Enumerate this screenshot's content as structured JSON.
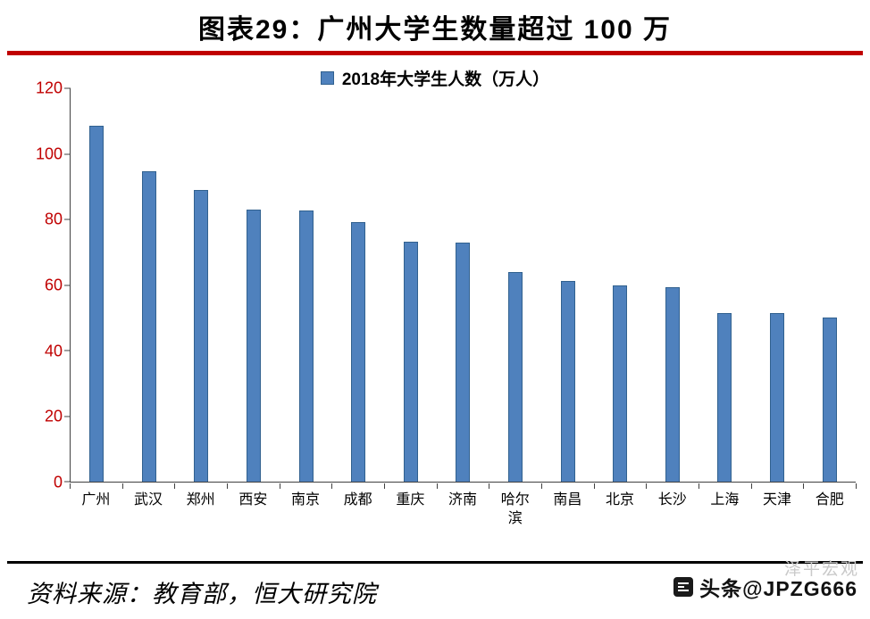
{
  "header": {
    "title": "图表29：广州大学生数量超过 100 万"
  },
  "chart_data": {
    "type": "bar",
    "title": "2018年大学生人数（万人）",
    "categories": [
      "广州",
      "武汉",
      "郑州",
      "西安",
      "南京",
      "成都",
      "重庆",
      "济南",
      "哈尔滨",
      "南昌",
      "北京",
      "长沙",
      "上海",
      "天津",
      "合肥"
    ],
    "values": [
      108.6,
      94.6,
      88.9,
      83.1,
      82.7,
      79.2,
      73.2,
      72.8,
      63.9,
      61.2,
      59.9,
      59.2,
      51.5,
      51.4,
      50.2
    ],
    "xlabel": "",
    "ylabel": "",
    "ylim": [
      0,
      120
    ],
    "yticks": [
      0,
      20,
      40,
      60,
      80,
      100,
      120
    ],
    "legend_position": "top-center",
    "grid": false,
    "colors": {
      "bar_fill": "#4F81BD",
      "bar_border": "#31618F",
      "y_tick_label": "#C00000"
    }
  },
  "accent": {
    "title_rule": "#C00000",
    "footer_rule": "#000000"
  },
  "footer": {
    "source": "资料来源：教育部，恒大研究院",
    "stamp": "泽平宏观",
    "watermark": "头条@JPZG666"
  }
}
